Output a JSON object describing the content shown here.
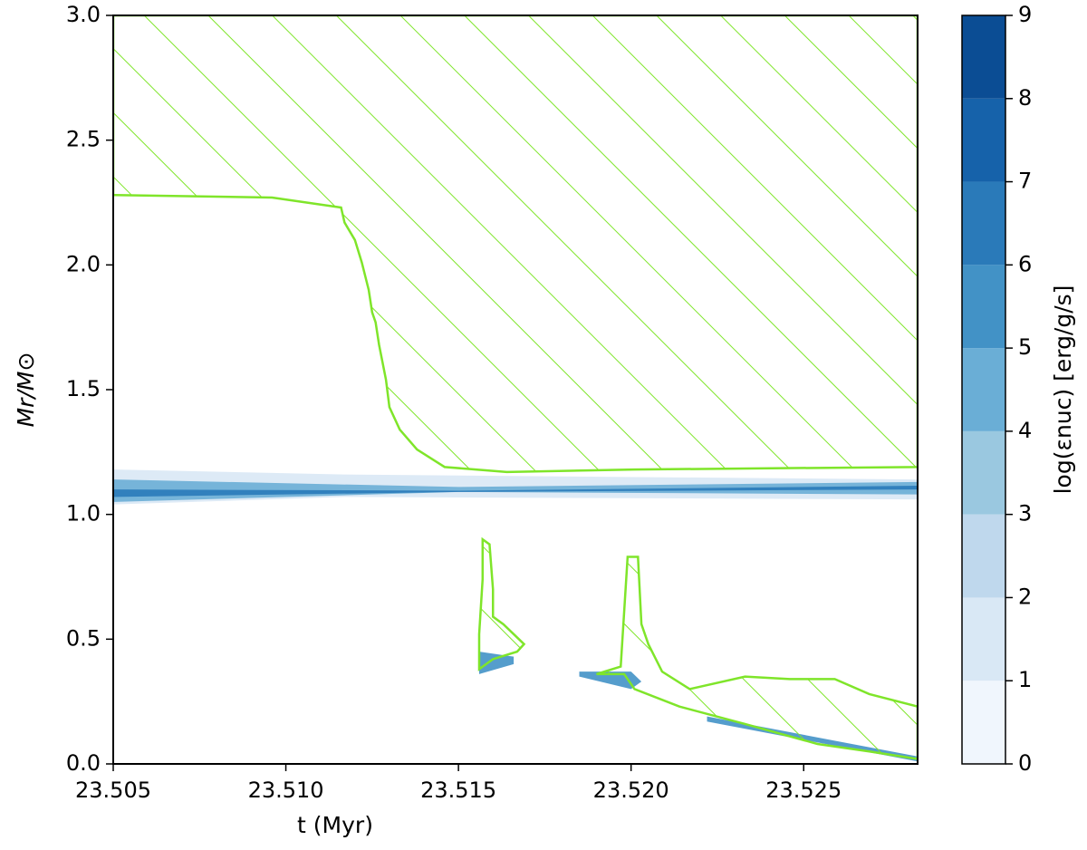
{
  "chart_data": {
    "type": "kippenhahn",
    "xlabel": "t (Myr)",
    "ylabel": "Mr/M⊙",
    "xlim": [
      23.505,
      23.5283
    ],
    "ylim": [
      0,
      3
    ],
    "xticks": [
      {
        "value": 23.505,
        "label": "23.505"
      },
      {
        "value": 23.51,
        "label": "23.510"
      },
      {
        "value": 23.515,
        "label": "23.515"
      },
      {
        "value": 23.52,
        "label": "23.520"
      },
      {
        "value": 23.525,
        "label": "23.525"
      }
    ],
    "yticks": [
      {
        "value": 0,
        "label": "0.0"
      },
      0.5,
      {
        "value": 1,
        "label": "1.0"
      },
      1.5,
      {
        "value": 2,
        "label": "2.0"
      },
      2.5,
      {
        "value": 3,
        "label": "3.0"
      }
    ],
    "convection_color": "#7fe52a",
    "convective_zones": [
      {
        "x": [
          23.505,
          23.5096,
          23.5116,
          23.5117,
          23.512,
          23.5122,
          23.5124,
          23.5125,
          23.5126,
          23.5127,
          23.5129,
          23.513,
          23.5133,
          23.5138,
          23.5146,
          23.5164,
          23.5201,
          23.5283,
          23.5283,
          23.505
        ],
        "y": [
          2.28,
          2.27,
          2.23,
          2.17,
          2.1,
          2.01,
          1.9,
          1.81,
          1.77,
          1.68,
          1.54,
          1.43,
          1.34,
          1.26,
          1.19,
          1.17,
          1.18,
          1.19,
          3,
          3
        ]
      },
      {
        "x": [
          23.5156,
          23.5156,
          23.5157,
          23.5157,
          23.5159,
          23.516,
          23.516,
          23.5163,
          23.5166,
          23.5169,
          23.5167,
          23.516
        ],
        "y": [
          0.38,
          0.52,
          0.74,
          0.9,
          0.88,
          0.7,
          0.59,
          0.56,
          0.52,
          0.48,
          0.45,
          0.42
        ]
      },
      {
        "x": [
          23.519,
          23.5197,
          23.5198,
          23.5199,
          23.5202,
          23.5203,
          23.5205,
          23.5209,
          23.5217,
          23.5233,
          23.5246,
          23.5259,
          23.5269,
          23.5283,
          23.5283,
          23.5269,
          23.5254,
          23.5233,
          23.5214,
          23.5201,
          23.5198
        ],
        "y": [
          0.36,
          0.39,
          0.61,
          0.83,
          0.83,
          0.56,
          0.48,
          0.37,
          0.3,
          0.35,
          0.34,
          0.34,
          0.28,
          0.23,
          0.02,
          0.05,
          0.08,
          0.16,
          0.23,
          0.3,
          0.36
        ]
      }
    ],
    "burning_zones": [
      {
        "level": 1,
        "x": [
          23.505,
          23.5117,
          23.5283,
          23.5283,
          23.5117,
          23.505
        ],
        "y": [
          1.18,
          1.16,
          1.14,
          1.06,
          1.07,
          1.04
        ]
      },
      {
        "level": 4,
        "x": [
          23.505,
          23.515,
          23.5283,
          23.5283,
          23.515,
          23.505
        ],
        "y": [
          1.14,
          1.11,
          1.13,
          1.08,
          1.09,
          1.05
        ]
      },
      {
        "level": 6,
        "x": [
          23.505,
          23.515,
          23.5283,
          23.5283,
          23.515,
          23.505
        ],
        "y": [
          1.1,
          1.095,
          1.115,
          1.1,
          1.09,
          1.07
        ]
      },
      {
        "level": 5,
        "x": [
          23.5156,
          23.5166,
          23.5166,
          23.5156
        ],
        "y": [
          0.45,
          0.43,
          0.4,
          0.36
        ]
      },
      {
        "level": 5,
        "x": [
          23.5185,
          23.52,
          23.5203,
          23.52,
          23.5185
        ],
        "y": [
          0.37,
          0.37,
          0.33,
          0.3,
          0.35
        ]
      },
      {
        "level": 5,
        "x": [
          23.5222,
          23.5283,
          23.5283,
          23.5222
        ],
        "y": [
          0.19,
          0.03,
          0.01,
          0.17
        ]
      }
    ],
    "colorbar": {
      "label": "log(εnuc) [erg/g/s]",
      "clim": [
        0,
        9
      ],
      "ticks": [
        0,
        1,
        2,
        3,
        4,
        5,
        6,
        7,
        8,
        9
      ],
      "colors": [
        "#f0f6fd",
        "#d9e8f5",
        "#bfd8ed",
        "#9ac8e0",
        "#6aaed6",
        "#4292c6",
        "#2a7ab9",
        "#1662aa",
        "#0b4d94"
      ]
    }
  }
}
